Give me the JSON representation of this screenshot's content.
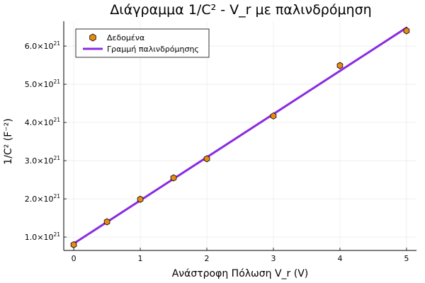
{
  "chart_data": {
    "type": "scatter",
    "title": "Διάγραμμα 1/C² - V_r με παλινδρόμηση",
    "xlabel": "Ανάστροφη Πόλωση V_r (V)",
    "ylabel": "1/C² (F⁻²)",
    "xlim": [
      -0.15,
      5.15
    ],
    "ylim": [
      6.5e+20,
      6.65e+21
    ],
    "x_ticks": [
      0,
      1,
      2,
      3,
      4,
      5
    ],
    "y_ticks": [
      1e+21,
      2e+21,
      3e+21,
      4e+21,
      5e+21,
      6e+21
    ],
    "y_tick_labels": [
      {
        "mant": "1.0",
        "base": "×10",
        "exp": "21"
      },
      {
        "mant": "2.0",
        "base": "×10",
        "exp": "21"
      },
      {
        "mant": "3.0",
        "base": "×10",
        "exp": "21"
      },
      {
        "mant": "4.0",
        "base": "×10",
        "exp": "21"
      },
      {
        "mant": "5.0",
        "base": "×10",
        "exp": "21"
      },
      {
        "mant": "6.0",
        "base": "×10",
        "exp": "21"
      }
    ],
    "grid": true,
    "legend_position": "top-left",
    "series": [
      {
        "name": "Δεδομένα",
        "kind": "scatter",
        "marker": "hexagon",
        "color": "#e98a15",
        "x": [
          0,
          0.5,
          1,
          1.5,
          2,
          3,
          4,
          5
        ],
        "y": [
          8e+20,
          1.4e+21,
          1.99e+21,
          2.55e+21,
          3.05e+21,
          4.17e+21,
          5.49e+21,
          6.4e+21
        ]
      },
      {
        "name": "Γραμμή παλινδρόμησης",
        "kind": "line",
        "color": "#8a2be2",
        "x": [
          0,
          5
        ],
        "y": [
          8.3e+20,
          6.48e+21
        ]
      }
    ]
  }
}
